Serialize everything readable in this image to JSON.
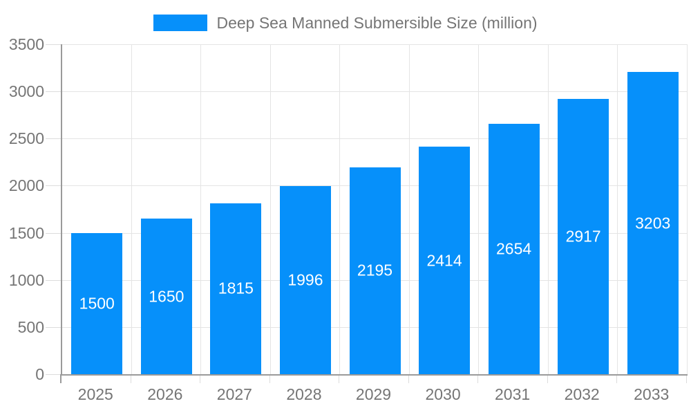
{
  "legend": {
    "label": "Deep Sea Manned Submersible Size (million)",
    "swatch_color": "#0690fa"
  },
  "chart_data": {
    "type": "bar",
    "title": "Deep Sea Manned Submersible Size (million)",
    "categories": [
      "2025",
      "2026",
      "2027",
      "2028",
      "2029",
      "2030",
      "2031",
      "2032",
      "2033"
    ],
    "values": [
      1500,
      1650,
      1815,
      1996,
      2195,
      2414,
      2654,
      2917,
      3203
    ],
    "xlabel": "",
    "ylabel": "",
    "ylim": [
      0,
      3500
    ],
    "yticks": [
      0,
      500,
      1000,
      1500,
      2000,
      2500,
      3000,
      3500
    ],
    "grid": true,
    "legend_position": "top",
    "bar_labels_inside": true
  },
  "colors": {
    "bar": "#0690fa",
    "bar_label": "#ffffff",
    "grid": "#e4e4e4",
    "tick": "#dcdcdc",
    "axis": "#9a9a9a",
    "text": "#757575",
    "background": "#ffffff"
  }
}
